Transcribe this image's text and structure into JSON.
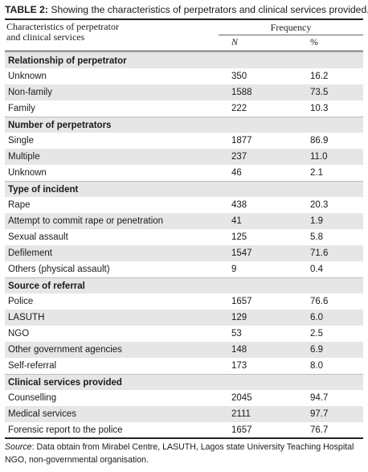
{
  "table": {
    "caption_label": "TABLE 2:",
    "caption_text": " Showing the characteristics of perpetrators and clinical services provided.",
    "col_header_line1": "Characteristics of perpetrator",
    "col_header_line2": "and clinical services",
    "col_header_frequency": "Frequency",
    "col_header_n": "N",
    "col_header_pct": "%",
    "rows": [
      {
        "type": "section",
        "label": "Relationship of perpetrator"
      },
      {
        "type": "data",
        "label": "Unknown",
        "n": "350",
        "pct": "16.2"
      },
      {
        "type": "data",
        "label": "Non-family",
        "n": "1588",
        "pct": "73.5"
      },
      {
        "type": "data",
        "label": "Family",
        "n": "222",
        "pct": "10.3"
      },
      {
        "type": "section",
        "label": "Number of perpetrators"
      },
      {
        "type": "data",
        "label": "Single",
        "n": "1877",
        "pct": "86.9"
      },
      {
        "type": "data",
        "label": "Multiple",
        "n": "237",
        "pct": "11.0"
      },
      {
        "type": "data",
        "label": "Unknown",
        "n": "46",
        "pct": "2.1"
      },
      {
        "type": "section",
        "label": "Type of incident"
      },
      {
        "type": "data",
        "label": "Rape",
        "n": "438",
        "pct": "20.3"
      },
      {
        "type": "data",
        "label": "Attempt to commit rape or penetration",
        "n": "41",
        "pct": "1.9"
      },
      {
        "type": "data",
        "label": "Sexual assault",
        "n": "125",
        "pct": "5.8"
      },
      {
        "type": "data",
        "label": "Defilement",
        "n": "1547",
        "pct": "71.6"
      },
      {
        "type": "data",
        "label": "Others (physical assault)",
        "n": "9",
        "pct": "0.4"
      },
      {
        "type": "section",
        "label": "Source of referral"
      },
      {
        "type": "data",
        "label": "Police",
        "n": "1657",
        "pct": "76.6"
      },
      {
        "type": "data",
        "label": "LASUTH",
        "n": "129",
        "pct": "6.0"
      },
      {
        "type": "data",
        "label": "NGO",
        "n": "53",
        "pct": "2.5"
      },
      {
        "type": "data",
        "label": "Other government agencies",
        "n": "148",
        "pct": "6.9"
      },
      {
        "type": "data",
        "label": "Self-referral",
        "n": "173",
        "pct": "8.0"
      },
      {
        "type": "section",
        "label": "Clinical services provided"
      },
      {
        "type": "data",
        "label": "Counselling",
        "n": "2045",
        "pct": "94.7"
      },
      {
        "type": "data",
        "label": "Medical services",
        "n": "2111",
        "pct": "97.7"
      },
      {
        "type": "data",
        "label": "Forensic report to the police",
        "n": "1657",
        "pct": "76.7"
      }
    ],
    "source_label": "Source",
    "source_text": ": Data obtain from Mirabel Centre, LASUTH, Lagos state University Teaching Hospital",
    "source_line2": "NGO, non-governmental organisation."
  }
}
